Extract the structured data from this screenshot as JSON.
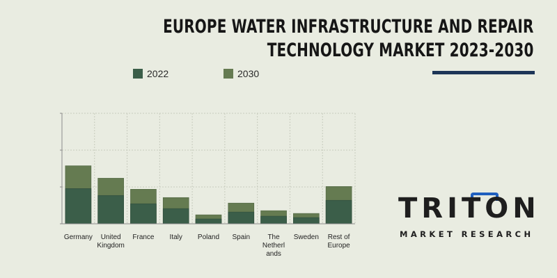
{
  "header": {
    "title_line1": "EUROPE WATER INFRASTRUCTURE AND REPAIR",
    "title_line2": "TECHNOLOGY MARKET 2023-2030"
  },
  "colors": {
    "background": "#e9ece1",
    "series_2022": "#3b5e49",
    "series_2030": "#657b51",
    "title_rule": "#1d3557",
    "logo_accent": "#1f5fbf"
  },
  "legend": [
    {
      "label": "2022",
      "color": "#3b5e49"
    },
    {
      "label": "2030",
      "color": "#657b51"
    }
  ],
  "chart_data": {
    "type": "bar",
    "stacked": true,
    "categories": [
      "Germany",
      "United Kingdom",
      "France",
      "Italy",
      "Poland",
      "Spain",
      "The Netherlands",
      "Sweden",
      "Rest of Europe"
    ],
    "category_labels": [
      [
        "Germany"
      ],
      [
        "United",
        "Kingdom"
      ],
      [
        "France"
      ],
      [
        "Italy"
      ],
      [
        "Poland"
      ],
      [
        "Spain"
      ],
      [
        "The",
        "Netherl",
        "ands"
      ],
      [
        "Sweden"
      ],
      [
        "Rest of",
        "Europe"
      ]
    ],
    "series": [
      {
        "name": "2022",
        "values": [
          51,
          41,
          29,
          22,
          7,
          17,
          11,
          9,
          34
        ]
      },
      {
        "name": "2030",
        "values": [
          84,
          66,
          50,
          38,
          13,
          30,
          19,
          15,
          54
        ]
      }
    ],
    "ylim": [
      0,
      160
    ],
    "grid": true
  },
  "logo": {
    "word": "TRITON",
    "subtitle": "MARKET RESEARCH"
  }
}
